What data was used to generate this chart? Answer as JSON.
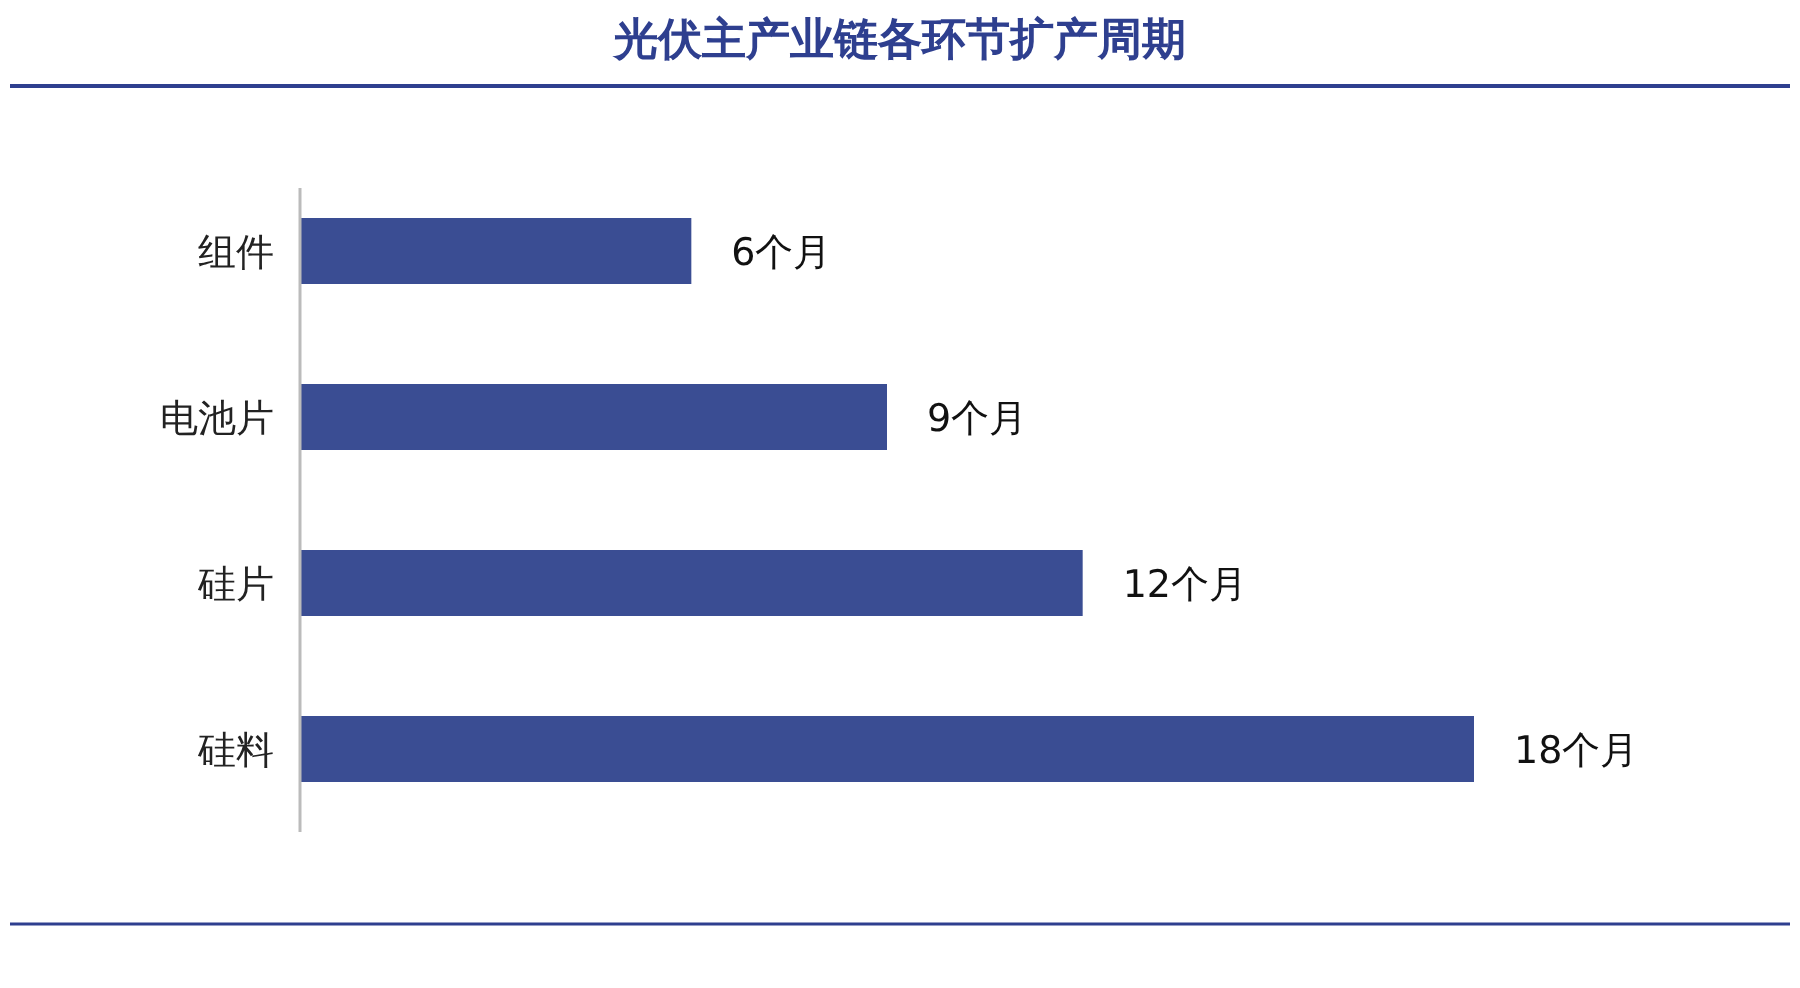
{
  "chart_data": {
    "type": "bar",
    "orientation": "horizontal",
    "title": "光伏主产业链各环节扩产周期",
    "categories": [
      "组件",
      "电池片",
      "硅片",
      "硅料"
    ],
    "values": [
      6,
      9,
      12,
      18
    ],
    "color": "#3a4d93",
    "value_labels": [
      "6个月",
      "9个月",
      "12个月",
      "18个月"
    ]
  }
}
